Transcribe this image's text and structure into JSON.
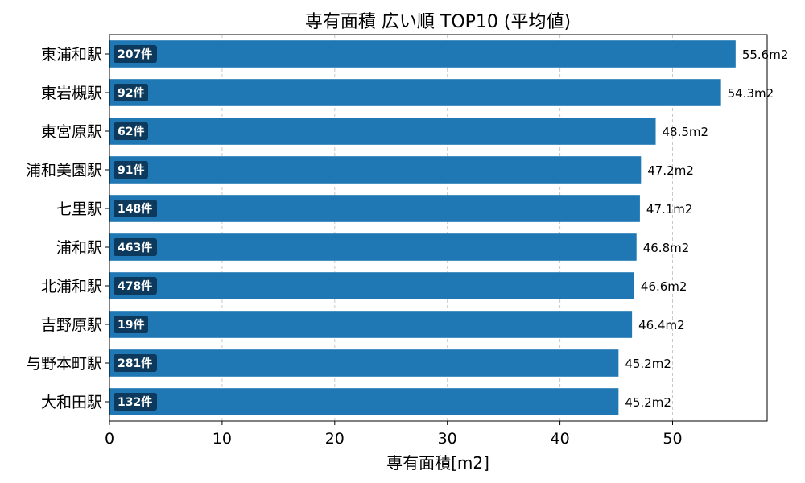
{
  "chart_data": {
    "type": "bar",
    "orientation": "horizontal",
    "title": "専有面積 広い順 TOP10 (平均値)",
    "xlabel": "専有面積[m2]",
    "ylabel": "",
    "xlim": [
      0,
      58.4
    ],
    "xticks": [
      0,
      10,
      20,
      30,
      40,
      50
    ],
    "grid": "x-dashed",
    "categories": [
      "東浦和駅",
      "東岩槻駅",
      "東宮原駅",
      "浦和美園駅",
      "七里駅",
      "浦和駅",
      "北浦和駅",
      "吉野原駅",
      "与野本町駅",
      "大和田駅"
    ],
    "values": [
      55.6,
      54.3,
      48.5,
      47.2,
      47.1,
      46.8,
      46.6,
      46.4,
      45.2,
      45.2
    ],
    "value_labels": [
      "55.6m2",
      "54.3m2",
      "48.5m2",
      "47.2m2",
      "47.1m2",
      "46.8m2",
      "46.6m2",
      "46.4m2",
      "45.2m2",
      "45.2m2"
    ],
    "count_labels": [
      "207件",
      "92件",
      "62件",
      "91件",
      "148件",
      "463件",
      "478件",
      "19件",
      "281件",
      "132件"
    ],
    "bar_color": "#1f77b4",
    "count_badge_color": "#0d3a5c"
  }
}
